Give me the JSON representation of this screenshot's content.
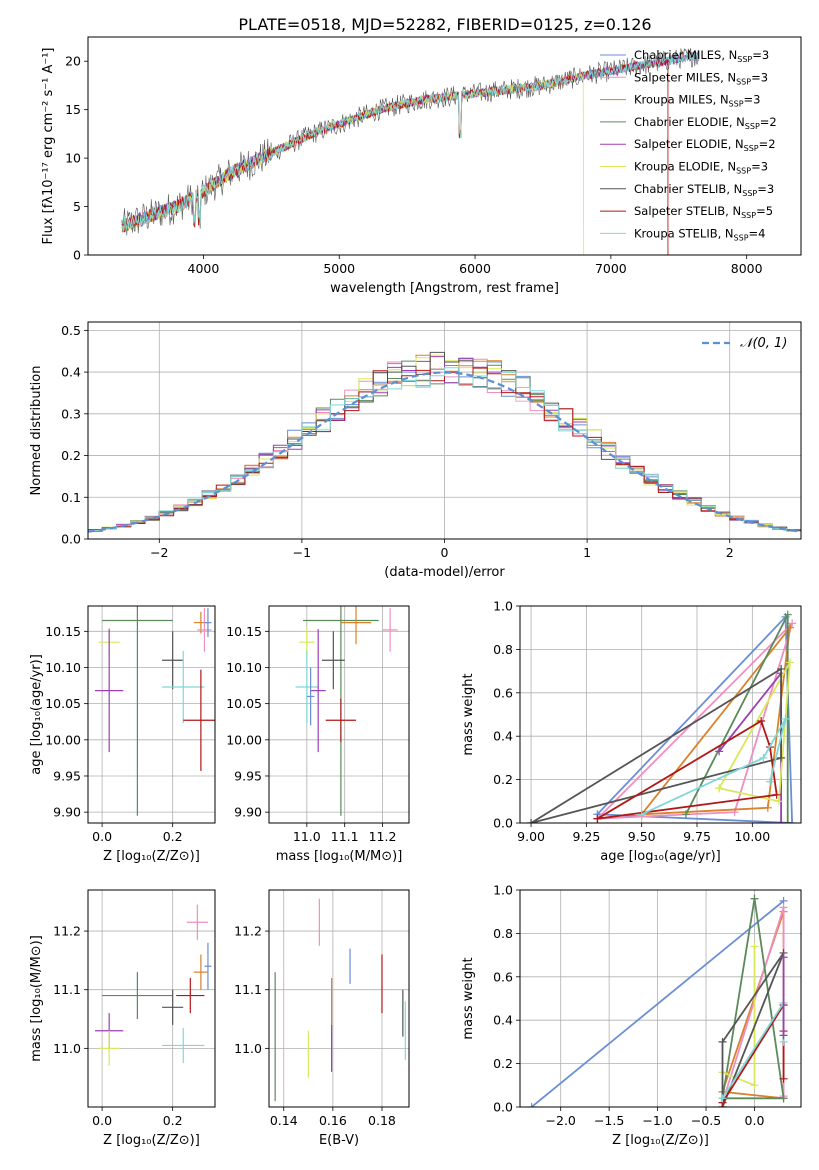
{
  "figure": {
    "title": "PLATE=0518, MJD=52282, FIBERID=0125, z=0.126"
  },
  "colors": {
    "miles_chabrier": "#6b8ed6",
    "miles_salpeter": "#f08ec0",
    "miles_kroupa": "#d9822b",
    "elodie_chabrier": "#5b8a5b",
    "elodie_salpeter": "#9b3fb5",
    "elodie_kroupa": "#d8e85a",
    "stelib_chabrier": "#555555",
    "stelib_salpeter": "#b01818",
    "stelib_kroupa": "#7fd8d8",
    "normal_curve": "#5b8fd6"
  },
  "legend_spectrum": [
    {
      "key": "miles_chabrier",
      "name": "Chabrier MILES, N",
      "sub": "SSP",
      "tail": "=3"
    },
    {
      "key": "miles_salpeter",
      "name": "Salpeter MILES, N",
      "sub": "SSP",
      "tail": "=3"
    },
    {
      "key": "miles_kroupa",
      "name": "Kroupa MILES, N",
      "sub": "SSP",
      "tail": "=3"
    },
    {
      "key": "elodie_chabrier",
      "name": "Chabrier ELODIE, N",
      "sub": "SSP",
      "tail": "=2"
    },
    {
      "key": "elodie_salpeter",
      "name": "Salpeter ELODIE, N",
      "sub": "SSP",
      "tail": "=2"
    },
    {
      "key": "elodie_kroupa",
      "name": "Kroupa ELODIE, N",
      "sub": "SSP",
      "tail": "=3"
    },
    {
      "key": "stelib_chabrier",
      "name": "Chabrier STELIB, N",
      "sub": "SSP",
      "tail": "=3"
    },
    {
      "key": "stelib_salpeter",
      "name": "Salpeter STELIB, N",
      "sub": "SSP",
      "tail": "=5"
    },
    {
      "key": "stelib_kroupa",
      "name": "Kroupa STELIB, N",
      "sub": "SSP",
      "tail": "=4"
    }
  ],
  "chart_data": [
    {
      "id": "spectrum",
      "type": "line",
      "xlabel": "wavelength [Angstrom, rest frame]",
      "ylabel": "Flux [fλ10⁻¹⁷ erg cm⁻² s⁻¹ A⁻¹]",
      "xlim": [
        3150,
        8400
      ],
      "ylim": [
        0,
        22.5
      ],
      "xticks": [
        4000,
        5000,
        6000,
        7000,
        8000
      ],
      "yticks": [
        0,
        5,
        10,
        15,
        20
      ],
      "grid": false,
      "legend": "top-right",
      "continuum_x": [
        3400,
        3600,
        3800,
        4000,
        4200,
        4500,
        4800,
        5000,
        5300,
        5600,
        5900,
        6200,
        6500,
        6800,
        7000,
        7200,
        7400,
        7600
      ],
      "continuum_y": [
        3,
        4,
        5,
        6.5,
        8.5,
        10.5,
        12.5,
        13.5,
        15,
        16,
        16.5,
        17,
        17.5,
        18.5,
        19,
        19.5,
        20,
        20.5
      ],
      "edge_drops_x": [
        6800,
        7420
      ]
    },
    {
      "id": "residuals",
      "type": "histogram",
      "xlabel": "(data-model)/error",
      "ylabel": "Normed distribution",
      "xlim": [
        -2.5,
        2.5
      ],
      "ylim": [
        0,
        0.52
      ],
      "xticks": [
        -2,
        -1,
        0,
        1,
        2
      ],
      "yticks": [
        0,
        0.1,
        0.2,
        0.3,
        0.4,
        0.5
      ],
      "grid": true,
      "legend": "top-right",
      "legend_label": "𝒩(0, 1)",
      "bin_width": 0.1
    },
    {
      "id": "age-vs-Z",
      "type": "scatter",
      "xlabel": "Z [log₁₀(Z/Z⊙)]",
      "ylabel": "age  [log₁₀(age/yr)]",
      "xlim": [
        -0.04,
        0.32
      ],
      "ylim": [
        9.885,
        10.185
      ],
      "xticks": [
        0.0,
        0.2
      ],
      "yticks": [
        9.9,
        9.95,
        10.0,
        10.05,
        10.1,
        10.15
      ],
      "grid": true,
      "points": [
        {
          "series": "elodie_chabrier",
          "x": 0.1,
          "y": 10.165,
          "xerr": 0.1,
          "yerr": 0.27
        },
        {
          "series": "miles_kroupa",
          "x": 0.28,
          "y": 10.162,
          "xerr": 0.02,
          "yerr": 0.015
        },
        {
          "series": "miles_salpeter",
          "x": 0.29,
          "y": 10.152,
          "xerr": 0.02,
          "yerr": 0.03
        },
        {
          "series": "elodie_kroupa",
          "x": 0.02,
          "y": 10.135,
          "xerr": 0.03,
          "yerr": 0.02
        },
        {
          "series": "stelib_chabrier",
          "x": 0.2,
          "y": 10.11,
          "xerr": 0.03,
          "yerr": 0.04
        },
        {
          "series": "stelib_kroupa",
          "x": 0.23,
          "y": 10.073,
          "xerr": 0.06,
          "yerr": 0.05
        },
        {
          "series": "elodie_salpeter",
          "x": 0.02,
          "y": 10.068,
          "xerr": 0.04,
          "yerr": 0.085
        },
        {
          "series": "stelib_salpeter",
          "x": 0.28,
          "y": 10.027,
          "xerr": 0.05,
          "yerr": 0.07
        },
        {
          "series": "miles_chabrier",
          "x": 0.3,
          "y": 10.162,
          "xerr": 0.01,
          "yerr": 0.02
        }
      ]
    },
    {
      "id": "age-vs-mass",
      "type": "scatter",
      "xlabel": "mass [log₁₀(M/M⊙)]",
      "ylabel": "",
      "xlim": [
        10.9,
        11.27
      ],
      "ylim": [
        9.885,
        10.185
      ],
      "xticks": [
        11.0,
        11.1,
        11.2
      ],
      "yticks": [
        9.9,
        9.95,
        10.0,
        10.05,
        10.1,
        10.15
      ],
      "grid": true,
      "points": [
        {
          "series": "elodie_chabrier",
          "x": 11.09,
          "y": 10.165,
          "xerr": 0.1,
          "yerr": 0.27
        },
        {
          "series": "miles_kroupa",
          "x": 11.13,
          "y": 10.162,
          "xerr": 0.04,
          "yerr": 0.03
        },
        {
          "series": "miles_salpeter",
          "x": 11.22,
          "y": 10.152,
          "xerr": 0.02,
          "yerr": 0.03
        },
        {
          "series": "elodie_kroupa",
          "x": 11.0,
          "y": 10.135,
          "xerr": 0.02,
          "yerr": 0.02
        },
        {
          "series": "stelib_chabrier",
          "x": 11.07,
          "y": 10.11,
          "xerr": 0.03,
          "yerr": 0.04
        },
        {
          "series": "stelib_kroupa",
          "x": 11.0,
          "y": 10.073,
          "xerr": 0.03,
          "yerr": 0.05
        },
        {
          "series": "elodie_salpeter",
          "x": 11.03,
          "y": 10.068,
          "xerr": 0.02,
          "yerr": 0.085
        },
        {
          "series": "stelib_salpeter",
          "x": 11.09,
          "y": 10.027,
          "xerr": 0.04,
          "yerr": 0.03
        },
        {
          "series": "miles_chabrier",
          "x": 11.01,
          "y": 10.06,
          "xerr": 0.01,
          "yerr": 0.04
        }
      ]
    },
    {
      "id": "massweight-vs-age",
      "type": "line",
      "xlabel": "age  [log₁₀(age/yr)]",
      "ylabel": "mass weight",
      "xlim": [
        8.95,
        10.22
      ],
      "ylim": [
        0,
        1.0
      ],
      "xticks": [
        9.0,
        9.25,
        9.5,
        9.75,
        10.0
      ],
      "yticks": [
        0,
        0.2,
        0.4,
        0.6,
        0.8,
        1.0
      ],
      "grid": true,
      "series": [
        {
          "series": "miles_chabrier",
          "x": [
            9.3,
            10.15,
            10.18,
            9.3
          ],
          "y": [
            0.04,
            0.95,
            0.0,
            0.04
          ]
        },
        {
          "series": "miles_salpeter",
          "x": [
            9.3,
            9.92,
            10.18,
            9.3
          ],
          "y": [
            0.02,
            0.05,
            0.92,
            0.02
          ]
        },
        {
          "series": "miles_kroupa",
          "x": [
            9.5,
            10.07,
            10.17,
            9.5
          ],
          "y": [
            0.04,
            0.07,
            0.9,
            0.04
          ]
        },
        {
          "series": "elodie_chabrier",
          "x": [
            9.7,
            10.16,
            10.16
          ],
          "y": [
            0.04,
            0.96,
            0.0
          ]
        },
        {
          "series": "elodie_salpeter",
          "x": [
            9.85,
            10.13,
            10.13
          ],
          "y": [
            0.33,
            0.69,
            0.0
          ]
        },
        {
          "series": "elodie_kroupa",
          "x": [
            9.85,
            10.12,
            10.17,
            9.85
          ],
          "y": [
            0.16,
            0.1,
            0.74,
            0.16
          ]
        },
        {
          "series": "stelib_chabrier",
          "x": [
            9.0,
            10.13,
            10.13,
            9.0
          ],
          "y": [
            0.0,
            0.3,
            0.71,
            0.0
          ]
        },
        {
          "series": "stelib_salpeter",
          "x": [
            9.3,
            10.04,
            10.08,
            10.11,
            9.3
          ],
          "y": [
            0.02,
            0.47,
            0.35,
            0.13,
            0.02
          ]
        },
        {
          "series": "stelib_kroupa",
          "x": [
            9.5,
            10.05,
            10.15,
            10.08
          ],
          "y": [
            0.04,
            0.3,
            0.48,
            0.19
          ]
        }
      ]
    },
    {
      "id": "mass-vs-Z",
      "type": "scatter",
      "xlabel": "Z [log₁₀(Z/Z⊙)]",
      "ylabel": "mass [log₁₀(M/M⊙)]",
      "xlim": [
        -0.04,
        0.32
      ],
      "ylim": [
        10.9,
        11.27
      ],
      "xticks": [
        0.0,
        0.2
      ],
      "yticks": [
        11.0,
        11.1,
        11.2
      ],
      "grid": true,
      "points": [
        {
          "series": "elodie_chabrier",
          "x": 0.1,
          "y": 11.09,
          "xerr": 0.1,
          "yerr": 0.04
        },
        {
          "series": "miles_salpeter",
          "x": 0.27,
          "y": 11.215,
          "xerr": 0.03,
          "yerr": 0.03
        },
        {
          "series": "miles_kroupa",
          "x": 0.28,
          "y": 11.13,
          "xerr": 0.02,
          "yerr": 0.03
        },
        {
          "series": "stelib_chabrier",
          "x": 0.2,
          "y": 11.07,
          "xerr": 0.03,
          "yerr": 0.03
        },
        {
          "series": "elodie_salpeter",
          "x": 0.02,
          "y": 11.03,
          "xerr": 0.04,
          "yerr": 0.03
        },
        {
          "series": "elodie_kroupa",
          "x": 0.02,
          "y": 11.0,
          "xerr": 0.03,
          "yerr": 0.03
        },
        {
          "series": "stelib_kroupa",
          "x": 0.23,
          "y": 11.005,
          "xerr": 0.06,
          "yerr": 0.03
        },
        {
          "series": "stelib_salpeter",
          "x": 0.25,
          "y": 11.09,
          "xerr": 0.04,
          "yerr": 0.03
        },
        {
          "series": "miles_chabrier",
          "x": 0.3,
          "y": 11.14,
          "xerr": 0.01,
          "yerr": 0.04
        }
      ]
    },
    {
      "id": "mass-vs-EBV",
      "type": "scatter",
      "xlabel": "E(B-V)",
      "ylabel": "",
      "xlim": [
        0.134,
        0.191
      ],
      "ylim": [
        10.9,
        11.27
      ],
      "xticks": [
        0.14,
        0.16,
        0.18
      ],
      "yticks": [
        11.0,
        11.1,
        11.2
      ],
      "grid": true,
      "points": [
        {
          "series": "miles_salpeter",
          "x": 0.1545,
          "y": 11.215,
          "xerr": 0,
          "yerr": 0.04
        },
        {
          "series": "miles_chabrier",
          "x": 0.167,
          "y": 11.14,
          "xerr": 0,
          "yerr": 0.03
        },
        {
          "series": "miles_kroupa",
          "x": 0.1595,
          "y": 11.08,
          "xerr": 0,
          "yerr": 0.04
        },
        {
          "series": "stelib_salpeter",
          "x": 0.18,
          "y": 11.11,
          "xerr": 0,
          "yerr": 0.05
        },
        {
          "series": "stelib_chabrier",
          "x": 0.1885,
          "y": 11.06,
          "xerr": 0,
          "yerr": 0.04
        },
        {
          "series": "elodie_chabrier",
          "x": 0.1365,
          "y": 11.02,
          "xerr": 0,
          "yerr": 0.11
        },
        {
          "series": "elodie_salpeter",
          "x": 0.1595,
          "y": 11.0,
          "xerr": 0,
          "yerr": 0.04
        },
        {
          "series": "elodie_kroupa",
          "x": 0.15,
          "y": 10.99,
          "xerr": 0,
          "yerr": 0.04
        },
        {
          "series": "stelib_kroupa",
          "x": 0.1895,
          "y": 11.03,
          "xerr": 0,
          "yerr": 0.05
        }
      ]
    },
    {
      "id": "massweight-vs-Z",
      "type": "line",
      "xlabel": "Z [log₁₀(Z/Z⊙)]",
      "ylabel": "mass weight",
      "xlim": [
        -2.42,
        0.48
      ],
      "ylim": [
        0,
        1.0
      ],
      "xticks": [
        -2.0,
        -1.5,
        -1.0,
        -0.5,
        0.0
      ],
      "yticks": [
        0,
        0.2,
        0.4,
        0.6,
        0.8,
        1.0
      ],
      "grid": true,
      "series": [
        {
          "series": "miles_chabrier",
          "x": [
            -2.3,
            0.3
          ],
          "y": [
            0.0,
            0.95
          ]
        },
        {
          "series": "miles_kroupa",
          "x": [
            -0.33,
            0.3,
            0.3,
            -0.33
          ],
          "y": [
            0.07,
            0.9,
            0.04,
            0.07
          ]
        },
        {
          "series": "miles_salpeter",
          "x": [
            -0.33,
            0.3,
            0.3
          ],
          "y": [
            0.02,
            0.92,
            0.05
          ]
        },
        {
          "series": "elodie_chabrier",
          "x": [
            0.0,
            0.3,
            -0.33,
            0.0
          ],
          "y": [
            0.96,
            0.04,
            0.04,
            0.96
          ]
        },
        {
          "series": "elodie_kroupa",
          "x": [
            0.0,
            0.0,
            -0.33
          ],
          "y": [
            0.74,
            0.1,
            0.16
          ]
        },
        {
          "series": "stelib_chabrier",
          "x": [
            -0.33,
            0.3,
            -0.33,
            -0.33
          ],
          "y": [
            0.0,
            0.71,
            0.3,
            0.0
          ]
        },
        {
          "series": "stelib_salpeter",
          "x": [
            -0.33,
            0.3,
            0.3,
            0.3
          ],
          "y": [
            0.02,
            0.47,
            0.35,
            0.13
          ]
        },
        {
          "series": "stelib_kroupa",
          "x": [
            -0.33,
            0.3,
            0.3
          ],
          "y": [
            0.04,
            0.48,
            0.3
          ]
        },
        {
          "series": "elodie_salpeter",
          "x": [
            0.3,
            0.3
          ],
          "y": [
            0.33,
            0.69
          ]
        }
      ]
    }
  ]
}
